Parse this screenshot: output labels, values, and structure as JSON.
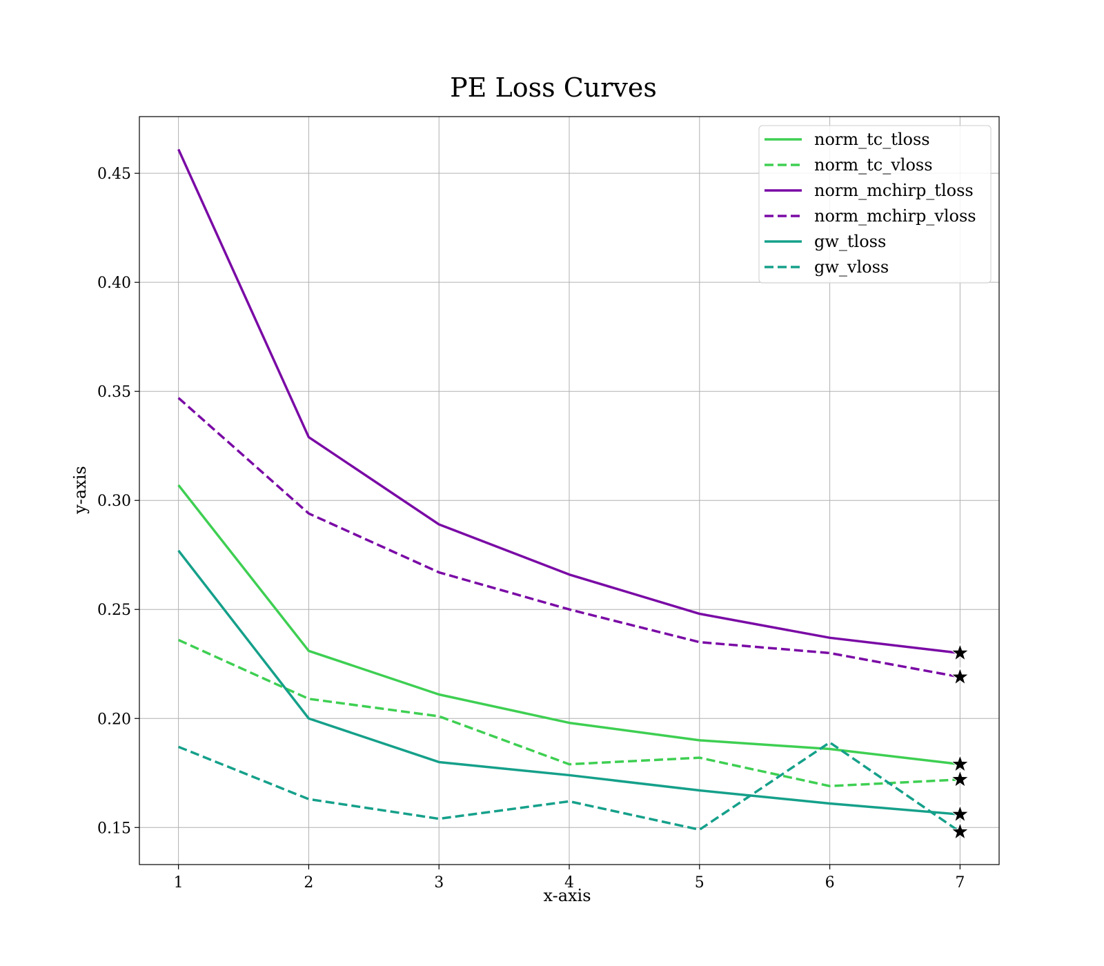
{
  "chart_data": {
    "type": "line",
    "title": "PE Loss Curves",
    "xlabel": "x-axis",
    "ylabel": "y-axis",
    "x": [
      1,
      2,
      3,
      4,
      5,
      6,
      7
    ],
    "xlim": [
      0.7,
      7.3
    ],
    "ylim": [
      0.133,
      0.476
    ],
    "xticks": [
      "1",
      "2",
      "3",
      "4",
      "5",
      "6",
      "7"
    ],
    "yticks": [
      "0.15",
      "0.20",
      "0.25",
      "0.30",
      "0.35",
      "0.40",
      "0.45"
    ],
    "grid": true,
    "legend_position": "top-right",
    "end_marker": "star",
    "series": [
      {
        "name": "norm_tc_tloss",
        "color": "#3ecf52",
        "style": "solid",
        "values": [
          0.307,
          0.231,
          0.211,
          0.198,
          0.19,
          0.186,
          0.179
        ]
      },
      {
        "name": "norm_tc_vloss",
        "color": "#3ecf52",
        "style": "dashed",
        "values": [
          0.236,
          0.209,
          0.201,
          0.179,
          0.182,
          0.169,
          0.172
        ]
      },
      {
        "name": "norm_mchirp_tloss",
        "color": "#7a0aa5",
        "style": "solid",
        "values": [
          0.461,
          0.329,
          0.289,
          0.266,
          0.248,
          0.237,
          0.23
        ]
      },
      {
        "name": "norm_mchirp_vloss",
        "color": "#7a0aa5",
        "style": "dashed",
        "values": [
          0.347,
          0.294,
          0.267,
          0.25,
          0.235,
          0.23,
          0.219
        ]
      },
      {
        "name": "gw_tloss",
        "color": "#15a08a",
        "style": "solid",
        "values": [
          0.277,
          0.2,
          0.18,
          0.174,
          0.167,
          0.161,
          0.156
        ]
      },
      {
        "name": "gw_vloss",
        "color": "#15a08a",
        "style": "dashed",
        "values": [
          0.187,
          0.163,
          0.154,
          0.162,
          0.149,
          0.189,
          0.148
        ]
      }
    ]
  }
}
